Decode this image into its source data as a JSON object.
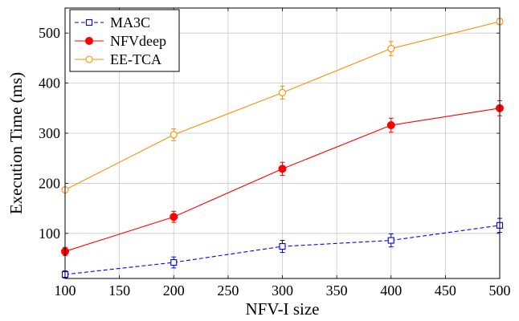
{
  "chart_data": {
    "type": "line",
    "title": "",
    "xlabel": "NFV-I size",
    "ylabel": "Execution Time (ms)",
    "x": [
      100,
      200,
      300,
      400,
      500
    ],
    "xlim": [
      100,
      500
    ],
    "ylim": [
      10,
      550
    ],
    "xticks": [
      100,
      150,
      200,
      250,
      300,
      350,
      400,
      450,
      500
    ],
    "yticks": [
      100,
      200,
      300,
      400,
      500
    ],
    "grid": true,
    "legend_position": "top-left",
    "series": [
      {
        "name": "MA3C",
        "values": [
          18,
          42,
          74,
          86,
          116
        ],
        "error": [
          7,
          11,
          12,
          13,
          14
        ],
        "color": "#0000ff",
        "line_style": "dashed",
        "marker": "open-square"
      },
      {
        "name": "NFVdeep",
        "values": [
          64,
          133,
          229,
          316,
          350
        ],
        "error": [
          8,
          11,
          13,
          14,
          15
        ],
        "color": "#ff0000",
        "line_style": "solid",
        "marker": "filled-circle"
      },
      {
        "name": "EE-TCA",
        "values": [
          187,
          297,
          381,
          469,
          523
        ],
        "error": [
          5,
          12,
          13,
          14,
          6
        ],
        "color": "#ff8c00",
        "line_style": "solid",
        "marker": "open-circle"
      }
    ]
  }
}
